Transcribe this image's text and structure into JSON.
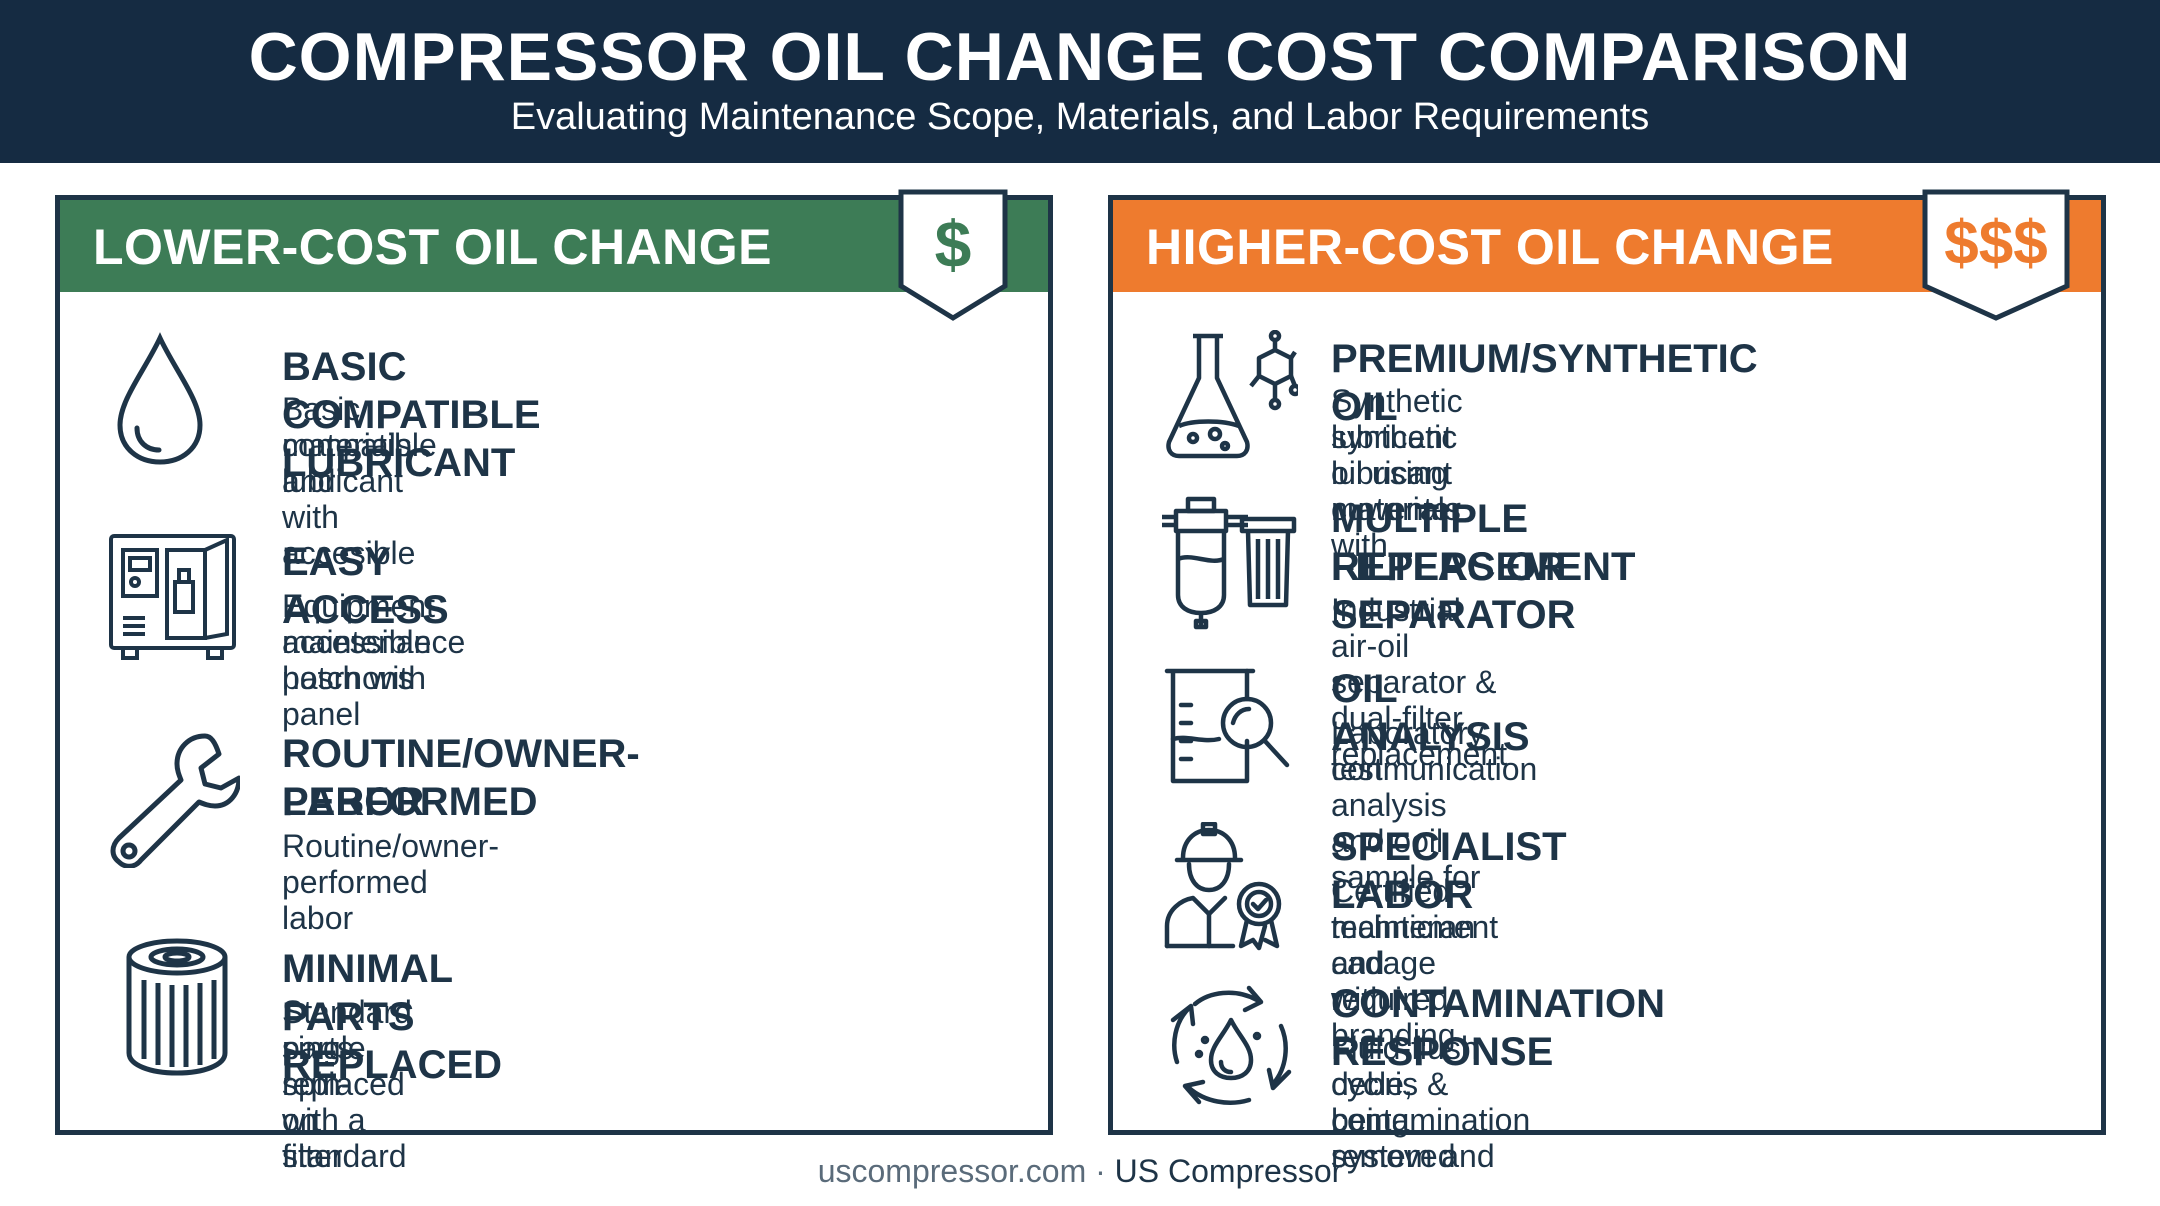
{
  "header": {
    "title": "COMPRESSOR OIL CHANGE COST COMPARISON",
    "subtitle": "Evaluating Maintenance Scope, Materials, and Labor Requirements"
  },
  "colors": {
    "navy": "#152b42",
    "green": "#3d7c56",
    "orange": "#ee7b2e",
    "text": "#1e3447"
  },
  "left_panel": {
    "title": "LOWER-COST OIL CHANGE",
    "badge": "$",
    "items": [
      {
        "icon": "oil-drop-icon",
        "title": "BASIC COMPATIBLE LUBRICANT",
        "desc_lines": [
          "Basic compatible lubricant with accesible",
          "materials and"
        ]
      },
      {
        "icon": "access-panel-icon",
        "title": "EASY ACCESS",
        "desc_lines": [
          "Equipment maintenance hatch with",
          "accessible posrnons panel"
        ]
      },
      {
        "icon": "wrench-icon",
        "title_lines": [
          "ROUTINE/OWNER-PERFORMED",
          "LABOR"
        ],
        "desc_lines": [
          "Routine/owner-performed labor"
        ]
      },
      {
        "icon": "spin-on-filter-icon",
        "title": "MINIMAL PARTS REPLACED",
        "desc_lines": [
          "Standard parts replaced with a standard",
          "single spin-on filter"
        ]
      }
    ]
  },
  "right_panel": {
    "title": "HIGHER-COST OIL CHANGE",
    "badge": "$$$",
    "items": [
      {
        "icon": "flask-molecule-icon",
        "title": "PREMIUM/SYNTHETIC OIL",
        "desc_lines": [
          "Synthetic lubricant oil using cuwenter with",
          "synthetic lubricant materials"
        ]
      },
      {
        "icon": "separator-filters-icon",
        "title_lines": [
          "MULTIPLE FILTERS OR SEPARATOR",
          "REPLACEMENT"
        ],
        "desc_lines": [
          "Industrial air-oil separator & dual-filter replacement"
        ]
      },
      {
        "icon": "beaker-magnifier-icon",
        "title": "OIL ANALYSIS",
        "desc_lines": [
          "Laboratory test analysis and ooil sample for",
          "conmunication"
        ]
      },
      {
        "icon": "technician-badge-icon",
        "title": "SPECIALIST LABOR",
        "desc_lines": [
          "Certified technician cadage with branding",
          "maintement and required"
        ]
      },
      {
        "icon": "recycle-drop-icon",
        "title": "CONTAMINATION RESPONSE",
        "desc_lines": [
          "Fluid-flush cycle, contamination system and",
          "debris & being removed"
        ]
      }
    ]
  },
  "footer": {
    "site": "uscompressor.com",
    "separator": " · ",
    "brand": "US Compressor"
  }
}
